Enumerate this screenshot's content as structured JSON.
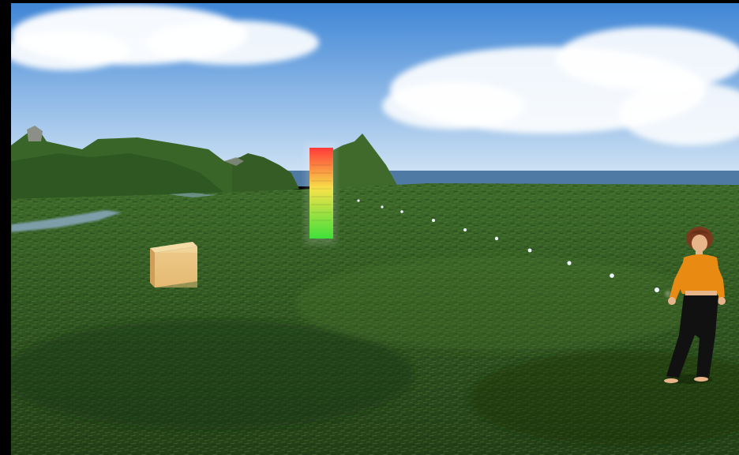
{
  "scene": {
    "colors": {
      "sky_top": "#3f86d6",
      "sky_bottom": "#d8e8f6",
      "sea": "#4f7aa3",
      "grass_dark": "#233f17",
      "grass_mid": "#3d6a2a",
      "grass_light": "#5f8a3f",
      "hill_green": "#3f6a2c",
      "box": "#e7bf79",
      "meter_top": "#ff3a3a",
      "meter_mid": "#f7e24a",
      "meter_bottom": "#3fe03a",
      "avatar_shirt": "#e98a12",
      "avatar_pants": "#111111",
      "avatar_hair": "#7a3a1e",
      "avatar_skin": "#e8b48a"
    },
    "objects": [
      {
        "name": "wooden-box",
        "kind": "prim"
      },
      {
        "name": "gradient-meter-pole",
        "kind": "prim"
      },
      {
        "name": "particle-trail",
        "kind": "particles"
      },
      {
        "name": "female-avatar",
        "kind": "avatar"
      }
    ]
  }
}
